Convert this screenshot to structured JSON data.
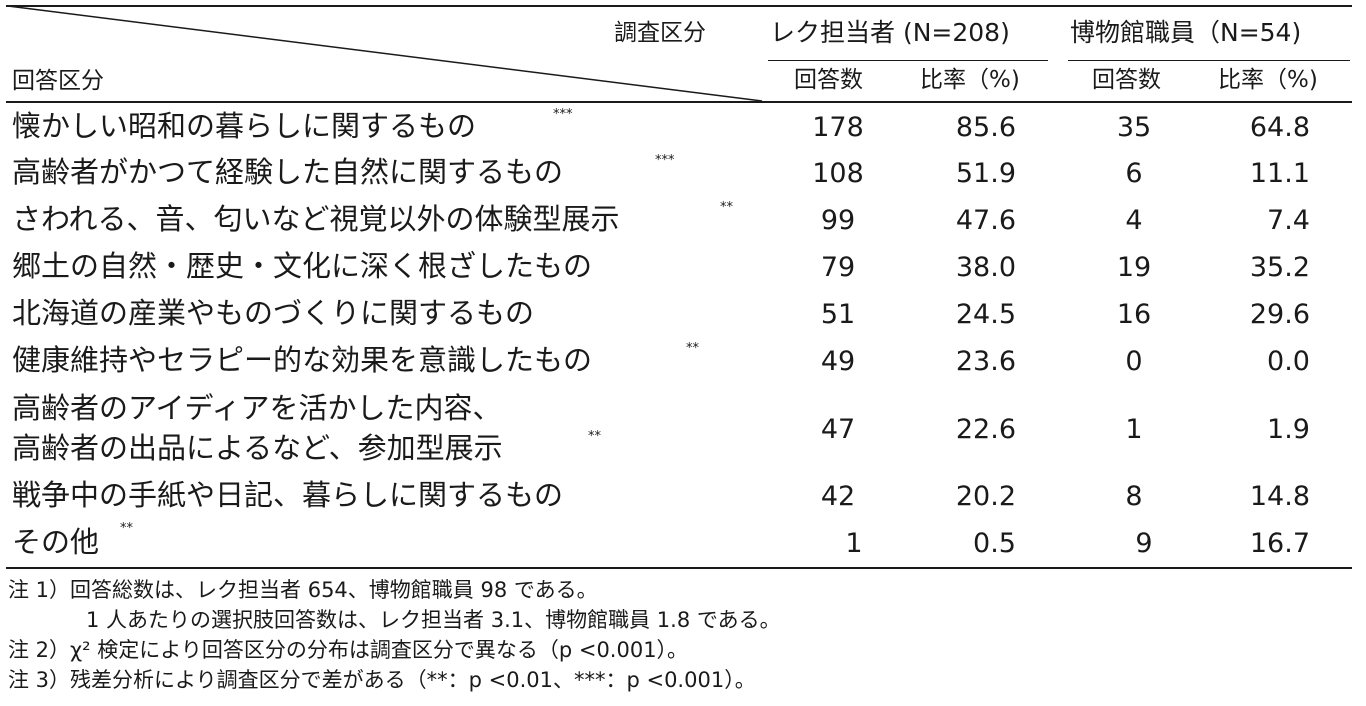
{
  "header": {
    "survey_label": "調査区分",
    "answer_label": "回答区分",
    "group1": "レク担当者 (N=208)",
    "group2": "博物館職員（N=54)",
    "count_label": "回答数",
    "ratio_label": "比率（%)"
  },
  "rows": [
    {
      "label": "懐かしい昭和の暮らしに関するもの",
      "mark": "***",
      "c1": "178",
      "r1": "85.6",
      "c2": "35",
      "r2": "64.8"
    },
    {
      "label": "高齢者がかつて経験した自然に関するもの",
      "mark": "***",
      "c1": "108",
      "r1": "51.9",
      "c2": "6",
      "r2": "11.1"
    },
    {
      "label": "さわれる、音、匂いなど視覚以外の体験型展示",
      "mark": "**",
      "c1": "99",
      "r1": "47.6",
      "c2": "4",
      "r2": "7.4"
    },
    {
      "label": "郷土の自然・歴史・文化に深く根ざしたもの",
      "mark": "",
      "c1": "79",
      "r1": "38.0",
      "c2": "19",
      "r2": "35.2"
    },
    {
      "label": "北海道の産業やものづくりに関するもの",
      "mark": "",
      "c1": "51",
      "r1": "24.5",
      "c2": "16",
      "r2": "29.6"
    },
    {
      "label": "健康維持やセラピー的な効果を意識したもの",
      "mark": "**",
      "c1": "49",
      "r1": "23.6",
      "c2": "0",
      "r2": "0.0"
    },
    {
      "label": "高齢者のアイディアを活かした内容、",
      "label2": "高齢者の出品によるなど、参加型展示",
      "mark": "**",
      "c1": "47",
      "r1": "22.6",
      "c2": "1",
      "r2": "1.9"
    },
    {
      "label": "戦争中の手紙や日記、暮らしに関するもの",
      "mark": "",
      "c1": "42",
      "r1": "20.2",
      "c2": "8",
      "r2": "14.8"
    },
    {
      "label": "その他",
      "mark": "**",
      "c1": "1",
      "r1": "0.5",
      "c2": "9",
      "r2": "16.7"
    }
  ],
  "notes": [
    "注 1）回答総数は、レク担当者 654、博物館職員 98 である。",
    "1 人あたりの選択肢回答数は、レク担当者 3.1、博物館職員 1.8 である。",
    "注 2）χ² 検定により回答区分の分布は調査区分で異なる（p <0.001）。",
    "注 3）残差分析により調査区分で差がある（**：p <0.01、***：p <0.001）。"
  ]
}
